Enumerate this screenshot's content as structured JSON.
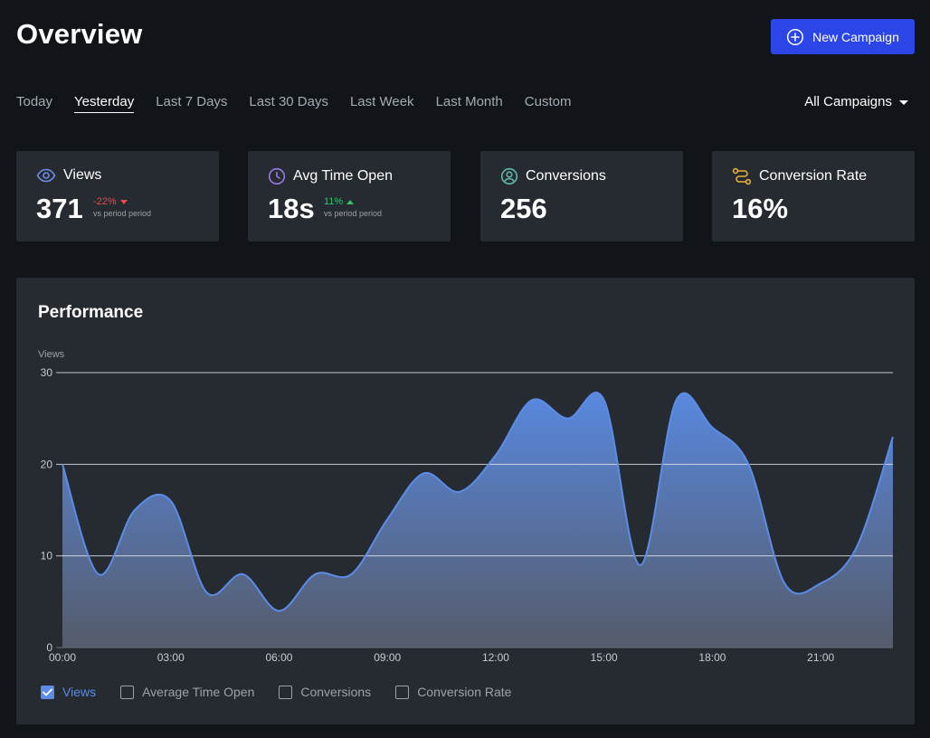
{
  "header": {
    "title": "Overview",
    "new_campaign_label": "New Campaign"
  },
  "range_tabs": [
    {
      "label": "Today",
      "active": false
    },
    {
      "label": "Yesterday",
      "active": true
    },
    {
      "label": "Last 7 Days",
      "active": false
    },
    {
      "label": "Last 30 Days",
      "active": false
    },
    {
      "label": "Last Week",
      "active": false
    },
    {
      "label": "Last Month",
      "active": false
    },
    {
      "label": "Custom",
      "active": false
    }
  ],
  "campaign_filter": {
    "selected": "All Campaigns"
  },
  "stats": [
    {
      "icon": "eye-icon",
      "label": "Views",
      "value": "371",
      "delta": "-22%",
      "delta_direction": "down",
      "delta_caption": "vs period period"
    },
    {
      "icon": "clock-icon",
      "label": "Avg Time Open",
      "value": "18s",
      "delta": "11%",
      "delta_direction": "up",
      "delta_caption": "vs period period"
    },
    {
      "icon": "user-circle-icon",
      "label": "Conversions",
      "value": "256"
    },
    {
      "icon": "route-icon",
      "label": "Conversion Rate",
      "value": "16%"
    }
  ],
  "colors": {
    "background": "#111418",
    "card": "#262a31",
    "accent": "#2b45e6",
    "series": "#5b8de8",
    "negative": "#ec4b4b",
    "positive": "#33c26d",
    "eye_icon": "#6d8ee6",
    "clock_icon": "#9a7be8",
    "user_icon": "#5fb8a8",
    "route_icon": "#e6b23c"
  },
  "performance": {
    "title": "Performance",
    "legend": [
      {
        "label": "Views",
        "checked": true
      },
      {
        "label": "Average Time Open",
        "checked": false
      },
      {
        "label": "Conversions",
        "checked": false
      },
      {
        "label": "Conversion Rate",
        "checked": false
      }
    ]
  },
  "chart_data": {
    "type": "area",
    "ylabel": "Views",
    "ylim": [
      0,
      30
    ],
    "yticks": [
      0,
      10,
      20,
      30
    ],
    "xticks": [
      "00:00",
      "03:00",
      "06:00",
      "09:00",
      "12:00",
      "15:00",
      "18:00",
      "21:00"
    ],
    "grid": true,
    "x": [
      "00:00",
      "01:00",
      "02:00",
      "03:00",
      "04:00",
      "05:00",
      "06:00",
      "07:00",
      "08:00",
      "09:00",
      "10:00",
      "11:00",
      "12:00",
      "13:00",
      "14:00",
      "15:00",
      "16:00",
      "17:00",
      "18:00",
      "19:00",
      "20:00",
      "21:00",
      "22:00",
      "23:00"
    ],
    "series": [
      {
        "name": "Views",
        "values": [
          20,
          8,
          15,
          16,
          6,
          8,
          4,
          8,
          8,
          14,
          19,
          17,
          21,
          27,
          25,
          27,
          9,
          27,
          24,
          20,
          7,
          7,
          11,
          23
        ]
      }
    ]
  }
}
